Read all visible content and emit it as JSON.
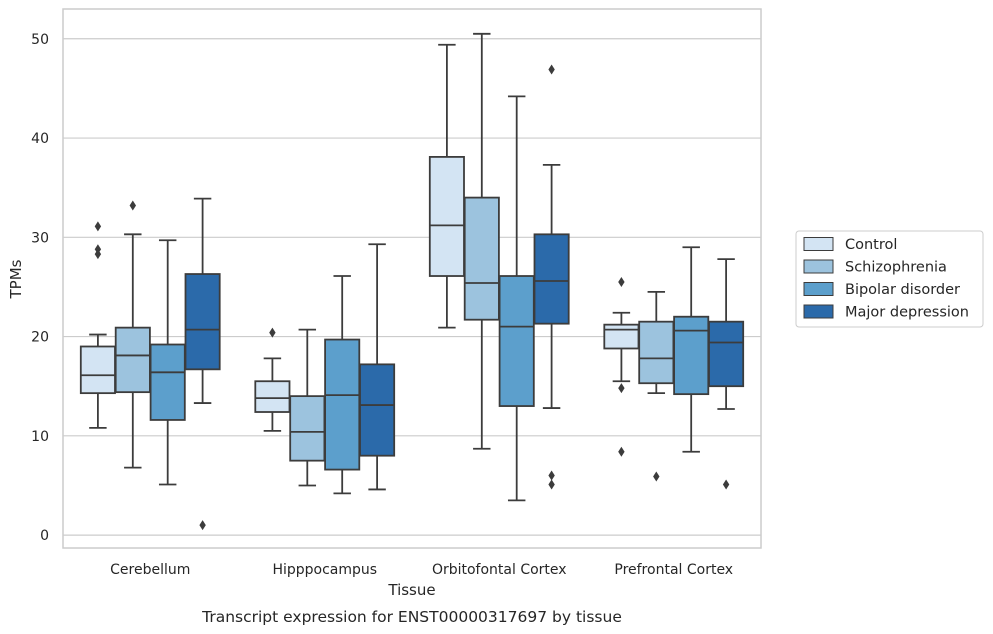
{
  "chart_data": {
    "type": "box",
    "xlabel": "Tissue",
    "ylabel": "TPMs",
    "caption": "Transcript expression for ENST00000317697 by tissue",
    "ylim": [
      -1.3,
      53
    ],
    "yticks": [
      0,
      10,
      20,
      30,
      40,
      50
    ],
    "grid": "horizontal",
    "legend_position": "right",
    "categories": [
      "Cerebellum",
      "Hipppocampus",
      "Orbitofontal Cortex",
      "Prefrontal Cortex"
    ],
    "series": [
      {
        "name": "Control",
        "color": "#d3e4f3",
        "boxes": [
          {
            "whislo": 10.8,
            "q1": 14.3,
            "med": 16.1,
            "q3": 19.0,
            "whishi": 20.2,
            "fliers": [
              28.3,
              28.8,
              31.1
            ]
          },
          {
            "whislo": 10.5,
            "q1": 12.4,
            "med": 13.8,
            "q3": 15.5,
            "whishi": 17.8,
            "fliers": [
              20.4
            ]
          },
          {
            "whislo": 20.9,
            "q1": 26.1,
            "med": 31.2,
            "q3": 38.1,
            "whishi": 49.4,
            "fliers": []
          },
          {
            "whislo": 15.5,
            "q1": 18.8,
            "med": 20.7,
            "q3": 21.2,
            "whishi": 22.4,
            "fliers": [
              25.5,
              14.8,
              8.4
            ]
          }
        ]
      },
      {
        "name": "Schizophrenia",
        "color": "#9cc3de",
        "boxes": [
          {
            "whislo": 6.8,
            "q1": 14.4,
            "med": 18.1,
            "q3": 20.9,
            "whishi": 30.3,
            "fliers": [
              33.2
            ]
          },
          {
            "whislo": 5.0,
            "q1": 7.5,
            "med": 10.4,
            "q3": 14.0,
            "whishi": 20.7,
            "fliers": []
          },
          {
            "whislo": 8.7,
            "q1": 21.7,
            "med": 25.4,
            "q3": 34.0,
            "whishi": 50.5,
            "fliers": []
          },
          {
            "whislo": 14.3,
            "q1": 15.3,
            "med": 17.8,
            "q3": 21.5,
            "whishi": 24.5,
            "fliers": [
              5.9
            ]
          }
        ]
      },
      {
        "name": "Bipolar disorder",
        "color": "#5c9fcc",
        "boxes": [
          {
            "whislo": 5.1,
            "q1": 11.6,
            "med": 16.4,
            "q3": 19.2,
            "whishi": 29.7,
            "fliers": []
          },
          {
            "whislo": 4.2,
            "q1": 6.6,
            "med": 14.1,
            "q3": 19.7,
            "whishi": 26.1,
            "fliers": []
          },
          {
            "whislo": 3.5,
            "q1": 13.0,
            "med": 21.0,
            "q3": 26.1,
            "whishi": 44.2,
            "fliers": []
          },
          {
            "whislo": 8.4,
            "q1": 14.2,
            "med": 20.6,
            "q3": 22.0,
            "whishi": 29.0,
            "fliers": []
          }
        ]
      },
      {
        "name": "Major depression",
        "color": "#2b6aaa",
        "boxes": [
          {
            "whislo": 13.3,
            "q1": 16.7,
            "med": 20.7,
            "q3": 26.3,
            "whishi": 33.9,
            "fliers": [
              1.0
            ]
          },
          {
            "whislo": 4.6,
            "q1": 8.0,
            "med": 13.1,
            "q3": 17.2,
            "whishi": 29.3,
            "fliers": []
          },
          {
            "whislo": 12.8,
            "q1": 21.3,
            "med": 25.6,
            "q3": 30.3,
            "whishi": 37.3,
            "fliers": [
              46.9,
              6.0,
              5.1
            ]
          },
          {
            "whislo": 12.7,
            "q1": 15.0,
            "med": 19.4,
            "q3": 21.5,
            "whishi": 27.8,
            "fliers": [
              5.1
            ]
          }
        ]
      }
    ]
  }
}
